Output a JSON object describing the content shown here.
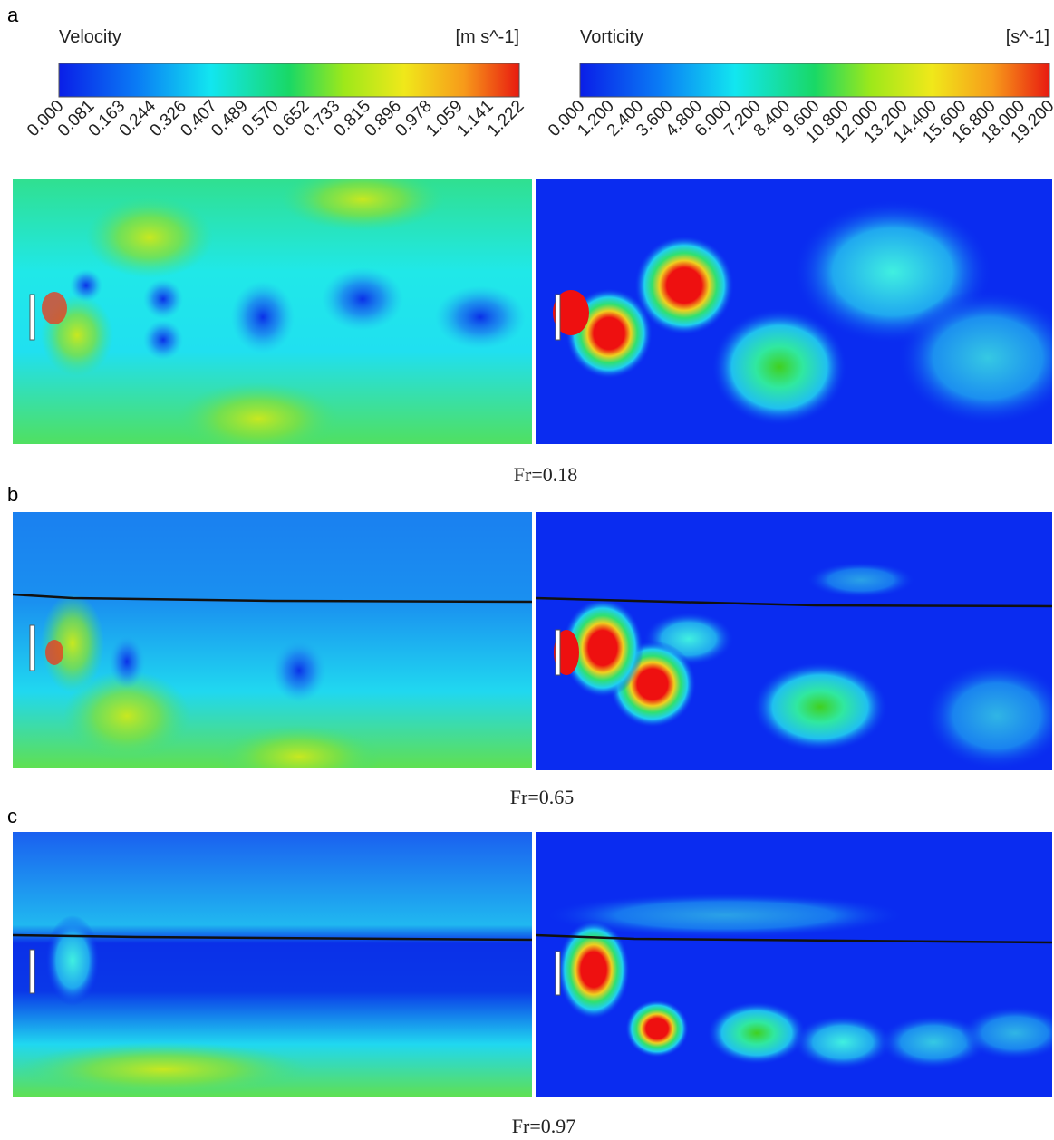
{
  "colorbars": [
    {
      "title": "Velocity",
      "unit": "[m s^-1]",
      "ticks": [
        "0.000",
        "0.081",
        "0.163",
        "0.244",
        "0.326",
        "0.407",
        "0.489",
        "0.570",
        "0.652",
        "0.733",
        "0.815",
        "0.896",
        "0.978",
        "1.059",
        "1.141",
        "1.222"
      ]
    },
    {
      "title": "Vorticity",
      "unit": "[s^-1]",
      "ticks": [
        "0.000",
        "1.200",
        "2.400",
        "3.600",
        "4.800",
        "6.000",
        "7.200",
        "8.400",
        "9.600",
        "10.800",
        "12.000",
        "13.200",
        "14.400",
        "15.600",
        "16.800",
        "18.000",
        "19.200"
      ]
    }
  ],
  "panels": [
    {
      "label": "a",
      "caption": "Fr=0.18"
    },
    {
      "label": "b",
      "caption": "Fr=0.65"
    },
    {
      "label": "c",
      "caption": "Fr=0.97"
    }
  ]
}
